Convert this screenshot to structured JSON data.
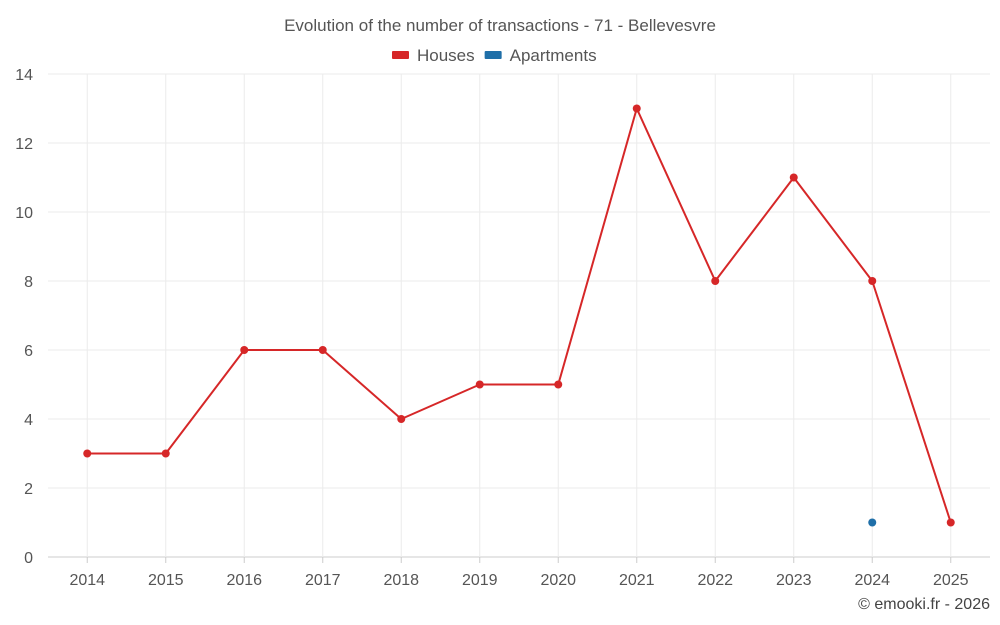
{
  "chart_data": {
    "type": "line",
    "title": "Evolution of the number of transactions - 71 - Bellevesvre",
    "categories": [
      "2014",
      "2015",
      "2016",
      "2017",
      "2018",
      "2019",
      "2020",
      "2021",
      "2022",
      "2023",
      "2024",
      "2025"
    ],
    "ylim": [
      0,
      14
    ],
    "yticks": [
      0,
      2,
      4,
      6,
      8,
      10,
      12,
      14
    ],
    "grid": true,
    "legend_position": "top-center",
    "series": [
      {
        "name": "Houses",
        "color": "#d62728",
        "values": [
          3,
          3,
          6,
          6,
          4,
          5,
          5,
          13,
          8,
          11,
          8,
          1
        ]
      },
      {
        "name": "Apartments",
        "color": "#1f6fa8",
        "values": [
          null,
          null,
          null,
          null,
          null,
          null,
          null,
          null,
          null,
          null,
          1,
          null
        ]
      }
    ]
  },
  "credit": "© emooki.fr - 2026"
}
